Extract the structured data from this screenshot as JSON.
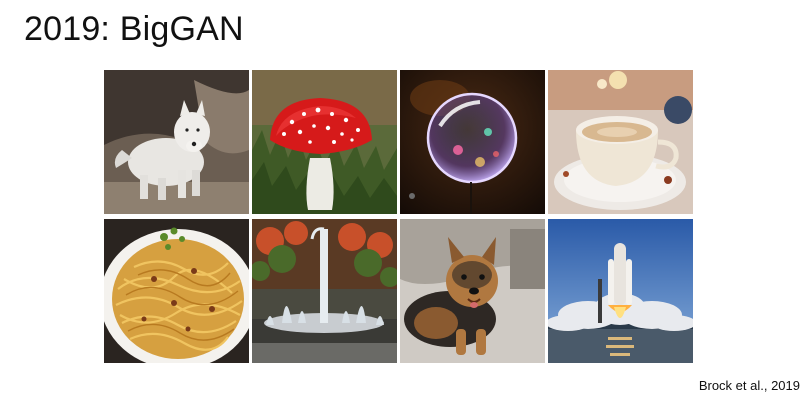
{
  "slide": {
    "title": "2019: BigGAN",
    "citation": "Brock et al., 2019"
  },
  "images": [
    {
      "subject": "white-wolf"
    },
    {
      "subject": "red-mushroom"
    },
    {
      "subject": "soap-bubble"
    },
    {
      "subject": "coffee-cup"
    },
    {
      "subject": "spaghetti"
    },
    {
      "subject": "fountain"
    },
    {
      "subject": "terrier-dog"
    },
    {
      "subject": "space-shuttle-launch"
    }
  ]
}
